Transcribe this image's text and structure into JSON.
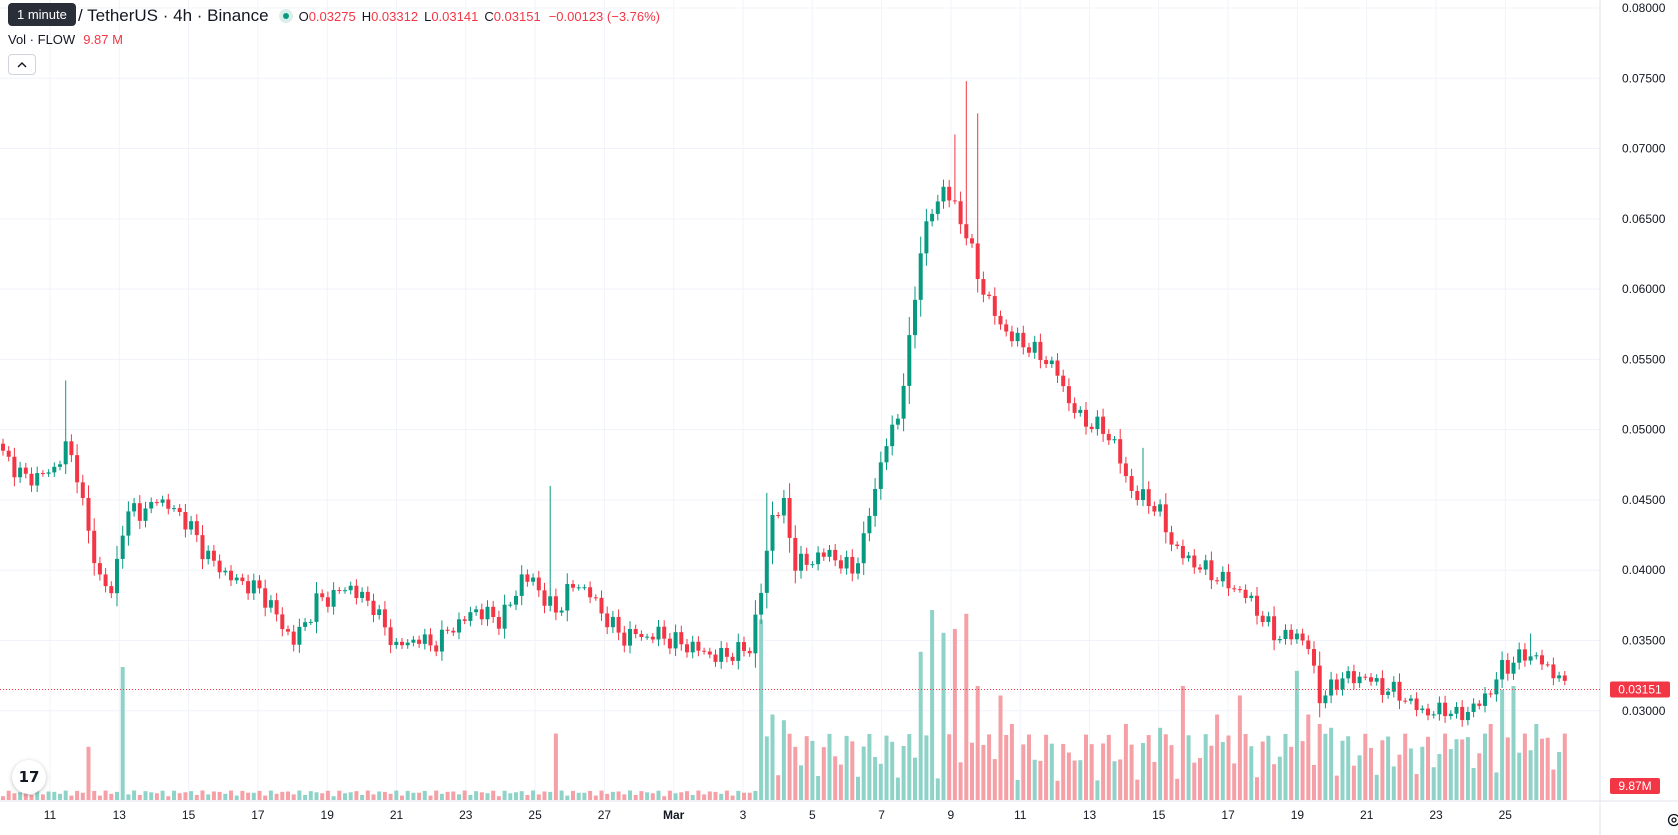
{
  "tooltip": "1 minute",
  "header": {
    "symbol_title": "/ TetherUS · 4h · Binance",
    "ohlc": [
      {
        "key": "O",
        "value": "0.03275"
      },
      {
        "key": "H",
        "value": "0.03312"
      },
      {
        "key": "L",
        "value": "0.03141"
      },
      {
        "key": "C",
        "value": "0.03151"
      }
    ],
    "change": "−0.00123 (−3.76%)"
  },
  "volume_legend": {
    "label": "Vol · FLOW",
    "value": "9.87 M"
  },
  "collapse_icon": "chevron-up-icon",
  "logo_text": "17",
  "colors": {
    "up": "#089981",
    "down": "#f23645",
    "vol_up": "#8fd3c8",
    "vol_down": "#f5a0a6",
    "grid": "#f0f3fa",
    "axis_text": "#131722"
  },
  "chart_data": {
    "type": "candlestick",
    "y_axis_labels": [
      "0.08000",
      "0.07500",
      "0.07000",
      "0.06500",
      "0.06000",
      "0.05500",
      "0.05000",
      "0.04500",
      "0.04000",
      "0.03500",
      "0.03000"
    ],
    "ylim": [
      0.0292,
      0.08
    ],
    "x_axis_labels": [
      "11",
      "13",
      "15",
      "17",
      "19",
      "21",
      "23",
      "25",
      "27",
      "Mar",
      "3",
      "5",
      "7",
      "9",
      "11",
      "13",
      "15",
      "17",
      "19",
      "21",
      "23",
      "25"
    ],
    "last_price_label": "0.03151",
    "last_volume_label": "9.87M",
    "price_path": [
      [
        0,
        0.0482
      ],
      [
        4,
        0.0465
      ],
      [
        7,
        0.0468
      ],
      [
        9,
        0.0472
      ],
      [
        11,
        0.0488
      ],
      [
        13,
        0.047
      ],
      [
        15,
        0.0425
      ],
      [
        17,
        0.0395
      ],
      [
        19,
        0.0383
      ],
      [
        21,
        0.043
      ],
      [
        23,
        0.0445
      ],
      [
        25,
        0.044
      ],
      [
        27,
        0.0452
      ],
      [
        29,
        0.0445
      ],
      [
        31,
        0.044
      ],
      [
        33,
        0.043
      ],
      [
        35,
        0.0415
      ],
      [
        37,
        0.0405
      ],
      [
        39,
        0.0398
      ],
      [
        41,
        0.0392
      ],
      [
        43,
        0.039
      ],
      [
        45,
        0.0385
      ],
      [
        47,
        0.0375
      ],
      [
        49,
        0.036
      ],
      [
        51,
        0.035
      ],
      [
        53,
        0.0362
      ],
      [
        55,
        0.0378
      ],
      [
        57,
        0.038
      ],
      [
        59,
        0.0385
      ],
      [
        61,
        0.0388
      ],
      [
        63,
        0.038
      ],
      [
        65,
        0.0375
      ],
      [
        67,
        0.0358
      ],
      [
        69,
        0.0346
      ],
      [
        71,
        0.0348
      ],
      [
        73,
        0.0352
      ],
      [
        75,
        0.0346
      ],
      [
        77,
        0.0352
      ],
      [
        79,
        0.036
      ],
      [
        81,
        0.0365
      ],
      [
        83,
        0.0372
      ],
      [
        85,
        0.0368
      ],
      [
        87,
        0.0365
      ],
      [
        89,
        0.0375
      ],
      [
        91,
        0.0395
      ],
      [
        93,
        0.0392
      ],
      [
        95,
        0.038
      ],
      [
        97,
        0.037
      ],
      [
        99,
        0.0385
      ],
      [
        101,
        0.039
      ],
      [
        103,
        0.0383
      ],
      [
        105,
        0.037
      ],
      [
        107,
        0.036
      ],
      [
        109,
        0.0352
      ],
      [
        111,
        0.0355
      ],
      [
        113,
        0.0352
      ],
      [
        115,
        0.0355
      ],
      [
        117,
        0.035
      ],
      [
        119,
        0.0348
      ],
      [
        121,
        0.0345
      ],
      [
        123,
        0.0342
      ],
      [
        125,
        0.0338
      ],
      [
        127,
        0.034
      ],
      [
        129,
        0.0342
      ],
      [
        131,
        0.0345
      ],
      [
        133,
        0.0385
      ],
      [
        135,
        0.044
      ],
      [
        137,
        0.0445
      ],
      [
        139,
        0.0405
      ],
      [
        141,
        0.0405
      ],
      [
        143,
        0.041
      ],
      [
        145,
        0.0412
      ],
      [
        147,
        0.0405
      ],
      [
        149,
        0.04
      ],
      [
        151,
        0.042
      ],
      [
        153,
        0.046
      ],
      [
        155,
        0.049
      ],
      [
        157,
        0.051
      ],
      [
        159,
        0.056
      ],
      [
        161,
        0.063
      ],
      [
        163,
        0.0655
      ],
      [
        165,
        0.0672
      ],
      [
        167,
        0.0658
      ],
      [
        169,
        0.064
      ],
      [
        171,
        0.061
      ],
      [
        173,
        0.059
      ],
      [
        175,
        0.0575
      ],
      [
        177,
        0.0565
      ],
      [
        179,
        0.0562
      ],
      [
        181,
        0.0555
      ],
      [
        183,
        0.055
      ],
      [
        185,
        0.054
      ],
      [
        187,
        0.052
      ],
      [
        189,
        0.0508
      ],
      [
        191,
        0.0504
      ],
      [
        193,
        0.05
      ],
      [
        195,
        0.049
      ],
      [
        197,
        0.0465
      ],
      [
        199,
        0.0452
      ],
      [
        201,
        0.045
      ],
      [
        203,
        0.044
      ],
      [
        205,
        0.042
      ],
      [
        207,
        0.041
      ],
      [
        209,
        0.0405
      ],
      [
        211,
        0.04
      ],
      [
        213,
        0.0395
      ],
      [
        215,
        0.039
      ],
      [
        217,
        0.0385
      ],
      [
        219,
        0.0378
      ],
      [
        221,
        0.0365
      ],
      [
        223,
        0.0355
      ],
      [
        225,
        0.0352
      ],
      [
        227,
        0.0355
      ],
      [
        229,
        0.0345
      ],
      [
        231,
        0.031
      ],
      [
        233,
        0.0315
      ],
      [
        235,
        0.0325
      ],
      [
        237,
        0.0322
      ],
      [
        239,
        0.0325
      ],
      [
        241,
        0.0318
      ],
      [
        243,
        0.0315
      ],
      [
        245,
        0.0312
      ],
      [
        247,
        0.0305
      ],
      [
        249,
        0.03
      ],
      [
        251,
        0.0298
      ],
      [
        253,
        0.0302
      ],
      [
        255,
        0.0296
      ],
      [
        257,
        0.03
      ],
      [
        259,
        0.0305
      ],
      [
        261,
        0.0315
      ],
      [
        263,
        0.033
      ],
      [
        265,
        0.0335
      ],
      [
        267,
        0.034
      ],
      [
        269,
        0.0338
      ],
      [
        271,
        0.033
      ],
      [
        273,
        0.0325
      ],
      [
        274,
        0.0315
      ]
    ],
    "notable_highs": [
      [
        11,
        0.0535
      ],
      [
        96,
        0.046
      ],
      [
        134,
        0.0455
      ],
      [
        167,
        0.071
      ],
      [
        169,
        0.0748
      ],
      [
        171,
        0.0725
      ],
      [
        200,
        0.0487
      ],
      [
        268,
        0.0355
      ]
    ],
    "volume_spikes": [
      [
        15,
        0.28
      ],
      [
        21,
        0.7
      ],
      [
        97,
        0.35
      ],
      [
        133,
        0.95
      ],
      [
        135,
        0.45
      ],
      [
        137,
        0.42
      ],
      [
        139,
        0.28
      ],
      [
        161,
        0.78
      ],
      [
        163,
        1.0
      ],
      [
        165,
        0.88
      ],
      [
        167,
        0.9
      ],
      [
        169,
        0.98
      ],
      [
        171,
        0.6
      ],
      [
        175,
        0.55
      ],
      [
        177,
        0.4
      ],
      [
        187,
        0.25
      ],
      [
        197,
        0.4
      ],
      [
        203,
        0.38
      ],
      [
        207,
        0.6
      ],
      [
        213,
        0.45
      ],
      [
        217,
        0.55
      ],
      [
        227,
        0.68
      ],
      [
        229,
        0.45
      ],
      [
        231,
        0.4
      ],
      [
        233,
        0.38
      ],
      [
        249,
        0.28
      ],
      [
        255,
        0.32
      ],
      [
        261,
        0.4
      ],
      [
        263,
        0.58
      ],
      [
        265,
        0.6
      ],
      [
        269,
        0.4
      ]
    ]
  }
}
